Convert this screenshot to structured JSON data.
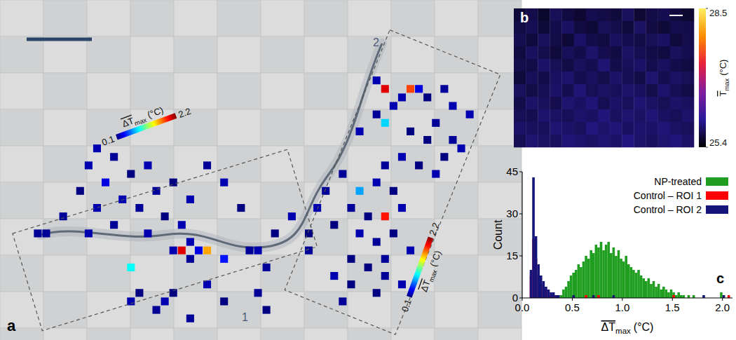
{
  "chart_data": [
    {
      "type": "heatmap",
      "panel": "a",
      "xlim": [
        0,
        60
      ],
      "ylim": [
        0,
        40
      ],
      "tick_labels": false,
      "annotations": [
        "1",
        "2"
      ],
      "colorbar": {
        "range": [
          0.1,
          2.2
        ],
        "ticks": [
          0.1,
          2.2
        ],
        "label": {
          "text": "ΔT",
          "subscript": "max",
          "unit": "(°C)"
        }
      },
      "cells": [
        [
          11,
          17,
          0.2
        ],
        [
          13,
          18,
          0.15
        ],
        [
          10,
          19,
          0.2
        ],
        [
          15,
          20,
          0.1
        ],
        [
          12,
          21,
          0.3
        ],
        [
          17,
          19,
          0.2
        ],
        [
          18,
          22,
          0.15
        ],
        [
          14,
          23,
          0.2
        ],
        [
          20,
          21,
          0.1
        ],
        [
          22,
          23,
          0.2
        ],
        [
          16,
          24,
          0.15
        ],
        [
          11,
          24,
          0.2
        ],
        [
          9,
          22,
          0.1
        ],
        [
          13,
          26,
          0.15
        ],
        [
          10,
          27,
          0.2
        ],
        [
          7,
          25,
          0.15
        ],
        [
          17,
          27,
          0.2
        ],
        [
          19,
          25,
          0.1
        ],
        [
          24,
          19,
          0.15
        ],
        [
          26,
          21,
          0.2
        ],
        [
          28,
          24,
          0.1
        ],
        [
          21,
          26,
          0.2
        ],
        [
          21,
          29,
          2.0
        ],
        [
          24,
          29,
          1.6
        ],
        [
          22,
          28,
          0.2
        ],
        [
          23,
          29,
          0.3
        ],
        [
          20,
          29,
          0.2
        ],
        [
          22,
          30,
          0.15
        ],
        [
          26,
          30,
          0.4
        ],
        [
          29,
          29,
          0.15
        ],
        [
          30,
          29,
          0.2
        ],
        [
          31,
          31,
          0.15
        ],
        [
          32,
          27,
          0.1
        ],
        [
          34,
          25,
          0.2
        ],
        [
          36,
          27,
          0.1
        ],
        [
          15,
          31,
          0.9
        ],
        [
          5,
          27,
          0.15
        ],
        [
          4,
          27,
          0.15
        ],
        [
          15,
          35,
          0.2
        ],
        [
          16,
          34,
          0.1
        ],
        [
          18,
          36,
          0.15
        ],
        [
          19,
          35,
          0.2
        ],
        [
          20,
          34,
          0.1
        ],
        [
          22,
          37,
          0.15
        ],
        [
          24,
          33,
          0.2
        ],
        [
          26,
          35,
          0.1
        ],
        [
          30,
          34,
          0.15
        ],
        [
          31,
          36,
          0.1
        ],
        [
          45,
          10,
          2.0
        ],
        [
          48,
          10,
          1.8
        ],
        [
          45,
          14,
          0.8
        ],
        [
          45,
          25,
          1.9
        ],
        [
          42,
          22,
          0.7
        ],
        [
          44,
          9,
          0.2
        ],
        [
          49,
          10,
          0.3
        ],
        [
          52,
          10,
          0.15
        ],
        [
          47,
          11,
          0.2
        ],
        [
          50,
          11,
          0.1
        ],
        [
          46,
          12,
          0.2
        ],
        [
          44,
          13,
          0.15
        ],
        [
          53,
          12,
          0.2
        ],
        [
          51,
          14,
          0.15
        ],
        [
          48,
          15,
          0.1
        ],
        [
          55,
          13,
          0.2
        ],
        [
          42,
          15,
          0.2
        ],
        [
          50,
          16,
          0.1
        ],
        [
          53,
          16,
          0.15
        ],
        [
          54,
          17,
          0.2
        ],
        [
          52,
          18,
          0.1
        ],
        [
          47,
          18,
          0.2
        ],
        [
          45,
          19,
          0.15
        ],
        [
          49,
          19,
          0.1
        ],
        [
          40,
          20,
          0.15
        ],
        [
          44,
          21,
          0.2
        ],
        [
          46,
          22,
          0.1
        ],
        [
          51,
          20,
          0.2
        ],
        [
          38,
          22,
          0.15
        ],
        [
          37,
          24,
          0.2
        ],
        [
          41,
          24,
          0.15
        ],
        [
          43,
          25,
          0.1
        ],
        [
          47,
          24,
          0.2
        ],
        [
          39,
          26,
          0.1
        ],
        [
          42,
          27,
          0.2
        ],
        [
          44,
          28,
          0.15
        ],
        [
          46,
          27,
          0.1
        ],
        [
          48,
          29,
          0.2
        ],
        [
          45,
          30,
          0.15
        ],
        [
          41,
          30,
          0.1
        ],
        [
          36,
          29,
          0.15
        ],
        [
          39,
          32,
          0.2
        ],
        [
          43,
          31,
          0.1
        ],
        [
          45,
          32,
          0.15
        ],
        [
          47,
          33,
          0.2
        ],
        [
          44,
          34,
          0.1
        ],
        [
          40,
          35,
          0.15
        ],
        [
          41,
          33,
          0.1
        ]
      ]
    },
    {
      "type": "heatmap",
      "panel": "b",
      "tick_labels": false,
      "colorbar": {
        "range": [
          25.4,
          28.5
        ],
        "ticks": [
          25.4,
          28.5
        ],
        "label": {
          "text": "T",
          "subscript": "max",
          "unit": "(°C)"
        }
      },
      "values": [
        [
          25.62,
          25.7,
          25.58,
          25.75,
          25.66,
          25.6,
          25.72,
          25.68,
          25.64,
          25.77,
          25.61,
          25.69,
          25.73,
          25.65,
          25.59
        ],
        [
          25.68,
          25.74,
          25.63,
          25.7,
          25.79,
          25.66,
          25.62,
          25.75,
          25.71,
          25.64,
          25.8,
          25.67,
          25.63,
          25.72,
          25.7
        ],
        [
          25.73,
          25.65,
          25.77,
          25.69,
          25.62,
          25.81,
          25.7,
          25.66,
          25.78,
          25.72,
          25.68,
          25.75,
          25.79,
          25.64,
          25.71
        ],
        [
          25.66,
          25.78,
          25.71,
          25.64,
          25.76,
          25.7,
          25.83,
          25.72,
          25.67,
          25.8,
          25.74,
          25.69,
          25.66,
          25.77,
          25.73
        ],
        [
          25.71,
          25.69,
          25.82,
          25.75,
          25.68,
          25.77,
          25.73,
          25.86,
          25.7,
          25.76,
          25.81,
          25.72,
          25.78,
          25.7,
          25.67
        ],
        [
          25.64,
          25.76,
          25.7,
          25.79,
          25.84,
          25.72,
          25.78,
          25.71,
          25.82,
          25.74,
          25.69,
          25.85,
          25.73,
          25.8,
          25.75
        ],
        [
          25.77,
          25.68,
          25.74,
          25.81,
          25.73,
          25.87,
          25.75,
          25.8,
          25.76,
          25.83,
          25.78,
          25.71,
          25.84,
          25.74,
          25.69
        ],
        [
          25.7,
          25.82,
          25.77,
          25.72,
          25.85,
          25.79,
          25.88,
          25.74,
          25.81,
          25.77,
          25.86,
          25.8,
          25.75,
          25.82,
          25.78
        ],
        [
          25.75,
          25.73,
          25.84,
          25.8,
          25.76,
          25.83,
          25.79,
          25.89,
          25.78,
          25.85,
          25.8,
          25.87,
          25.79,
          25.76,
          25.83
        ],
        [
          25.81,
          25.78,
          25.76,
          25.86,
          25.82,
          25.77,
          25.9,
          25.83,
          25.87,
          25.79,
          25.84,
          25.81,
          25.88,
          25.8,
          25.77
        ],
        [
          25.74,
          25.85,
          25.8,
          25.78,
          25.88,
          25.84,
          25.8,
          25.86,
          25.82,
          25.91,
          25.83,
          25.78,
          25.85,
          25.89,
          25.82
        ]
      ]
    },
    {
      "type": "histogram",
      "panel": "c",
      "x_label": {
        "text": "ΔT",
        "subscript": "max",
        "unit": "(°C)"
      },
      "y_label": "Count",
      "xlim": [
        0,
        2.1
      ],
      "ylim": [
        0,
        45
      ],
      "xticks": [
        {
          "value": 0,
          "label": "0.0"
        },
        0.5,
        {
          "value": 1,
          "label": "1.0"
        },
        1.5,
        {
          "value": 2,
          "label": "2.0"
        }
      ],
      "yticks": [
        0,
        15,
        30,
        45
      ],
      "legend": "upper right",
      "bins": [
        0,
        0.025,
        0.05,
        0.075,
        0.1,
        0.125,
        0.15,
        0.175,
        0.2,
        0.225,
        0.25,
        0.275,
        0.3,
        0.325,
        0.35,
        0.375,
        0.4,
        0.425,
        0.45,
        0.475,
        0.5,
        0.525,
        0.55,
        0.575,
        0.6,
        0.625,
        0.65,
        0.675,
        0.7,
        0.725,
        0.75,
        0.775,
        0.8,
        0.825,
        0.85,
        0.875,
        0.9,
        0.925,
        0.95,
        0.975,
        1,
        1.025,
        1.05,
        1.075,
        1.1,
        1.125,
        1.15,
        1.175,
        1.2,
        1.225,
        1.25,
        1.275,
        1.3,
        1.325,
        1.35,
        1.375,
        1.4,
        1.425,
        1.45,
        1.475,
        1.5,
        1.525,
        1.55,
        1.575,
        1.6,
        1.625,
        1.65,
        1.675,
        1.7,
        1.725,
        1.75,
        1.775,
        1.8,
        1.825,
        1.85,
        1.875,
        1.9,
        1.925,
        1.95,
        1.975,
        2,
        2.025,
        2.05,
        2.075,
        2.1
      ],
      "series": [
        {
          "name": "NP-treated",
          "color": "#1f9e1f",
          "values": [
            0,
            0,
            0,
            0,
            0,
            0,
            0,
            0,
            0,
            0,
            0,
            0,
            0,
            0,
            0,
            1,
            3,
            4,
            6,
            8,
            9,
            10,
            12,
            11,
            13,
            15,
            14,
            17,
            16,
            19,
            18,
            20,
            17,
            19,
            20,
            16,
            18,
            15,
            17,
            14,
            13,
            15,
            12,
            11,
            10,
            9,
            10,
            8,
            7,
            6,
            7,
            5,
            6,
            4,
            5,
            3,
            4,
            3,
            2,
            3,
            2,
            1,
            2,
            1,
            1,
            0,
            1,
            0,
            1,
            0,
            0,
            0,
            0,
            0,
            0,
            0,
            0,
            0,
            0,
            2,
            1,
            0,
            0,
            0
          ]
        },
        {
          "name": "Control – ROI 1",
          "color": "#ff0000",
          "values": [
            0,
            0,
            0,
            8,
            21,
            14,
            8,
            5,
            4,
            3,
            2,
            1,
            1,
            1,
            0,
            0,
            0,
            0,
            0,
            0,
            0,
            0,
            0,
            0,
            0,
            1,
            0,
            0,
            0,
            0,
            1,
            0,
            0,
            0,
            0,
            0,
            0,
            0,
            0,
            0,
            0,
            0,
            0,
            0,
            0,
            0,
            0,
            0,
            0,
            0,
            0,
            0,
            0,
            0,
            0,
            0,
            0,
            0,
            0,
            0,
            1,
            0,
            0,
            0,
            0,
            0,
            0,
            0,
            0,
            0,
            0,
            0,
            0,
            0,
            0,
            0,
            0,
            0,
            0,
            0,
            0,
            0,
            1,
            0
          ]
        },
        {
          "name": "Control – ROI 2",
          "color": "#14147a",
          "values": [
            0,
            0,
            0,
            10,
            43,
            22,
            12,
            8,
            6,
            4,
            3,
            2,
            2,
            1,
            1,
            0,
            0,
            0,
            0,
            0,
            1,
            0,
            0,
            0,
            0,
            0,
            0,
            0,
            1,
            0,
            0,
            0,
            0,
            0,
            0,
            0,
            1,
            0,
            0,
            0,
            0,
            0,
            0,
            0,
            0,
            0,
            0,
            0,
            0,
            0,
            0,
            0,
            0,
            0,
            0,
            0,
            0,
            0,
            0,
            0,
            0,
            0,
            0,
            0,
            0,
            0,
            0,
            0,
            0,
            0,
            0,
            0,
            1,
            0,
            0,
            0,
            0,
            0,
            0,
            0,
            1,
            0,
            0,
            0
          ]
        }
      ]
    }
  ]
}
